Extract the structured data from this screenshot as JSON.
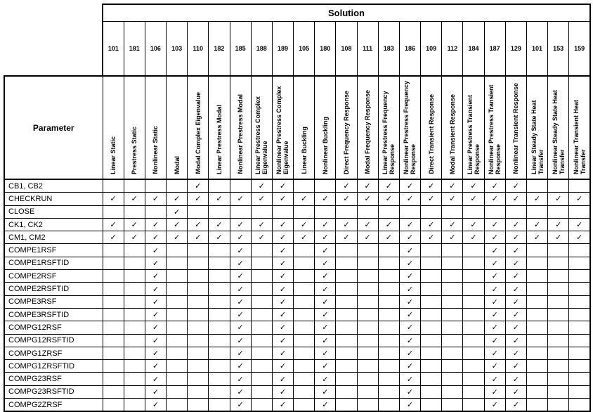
{
  "table": {
    "solution_header": "Solution",
    "parameter_header": "Parameter",
    "columns": [
      {
        "number": "101",
        "name": "Linear Static"
      },
      {
        "number": "181",
        "name": "Prestress Static"
      },
      {
        "number": "106",
        "name": "Nonlinear Static"
      },
      {
        "number": "103",
        "name": "Modal"
      },
      {
        "number": "110",
        "name": "Modal Complex Eigenvalue"
      },
      {
        "number": "182",
        "name": "Linear Prestress Modal"
      },
      {
        "number": "185",
        "name": "Nonlinear Prestress Modal"
      },
      {
        "number": "188",
        "name": "Linear Prestress Complex Eigenvalue"
      },
      {
        "number": "189",
        "name": "Nonlinear Prestress Complex Eigenvalue"
      },
      {
        "number": "105",
        "name": "Linear Buckling"
      },
      {
        "number": "180",
        "name": "Nonlinear Buckling"
      },
      {
        "number": "108",
        "name": "Direct Frequency Response"
      },
      {
        "number": "111",
        "name": "Modal Frequency Response"
      },
      {
        "number": "183",
        "name": "Linear Prestress Frequency Response"
      },
      {
        "number": "186",
        "name": "Nonlinear Prestress Frequency Response"
      },
      {
        "number": "109",
        "name": "Direct Transient Response"
      },
      {
        "number": "112",
        "name": "Modal Transient Response"
      },
      {
        "number": "184",
        "name": "Linear Prestress Transient Response"
      },
      {
        "number": "187",
        "name": "Nonlinear Prestress Transient Response"
      },
      {
        "number": "129",
        "name": "Nonlinear Transient Response"
      },
      {
        "number": "101",
        "name": "Linear Steady State Heat Transfer"
      },
      {
        "number": "153",
        "name": "Nonlinear Steady State Heat Transfer"
      },
      {
        "number": "159",
        "name": "Nonlinear Transient Heat Transfer"
      }
    ],
    "rows": [
      {
        "param": "CB1, CB2",
        "checks": [
          "",
          "",
          "",
          "",
          "✓",
          "",
          "",
          "✓",
          "✓",
          "",
          "",
          "✓",
          "✓",
          "✓",
          "✓",
          "✓",
          "✓",
          "✓",
          "✓",
          "✓",
          "",
          "",
          ""
        ]
      },
      {
        "param": "CHECKRUN",
        "checks": [
          "✓",
          "✓",
          "✓",
          "✓",
          "✓",
          "✓",
          "✓",
          "✓",
          "✓",
          "✓",
          "✓",
          "✓",
          "✓",
          "✓",
          "✓",
          "✓",
          "✓",
          "✓",
          "✓",
          "✓",
          "✓",
          "✓",
          "✓"
        ]
      },
      {
        "param": "CLOSE",
        "checks": [
          "",
          "",
          "",
          "✓",
          "",
          "",
          "",
          "",
          "",
          "",
          "",
          "",
          "",
          "",
          "",
          "",
          "",
          "",
          "",
          "",
          "",
          "",
          ""
        ]
      },
      {
        "param": "CK1, CK2",
        "checks": [
          "✓",
          "✓",
          "✓",
          "✓",
          "✓",
          "✓",
          "✓",
          "✓",
          "✓",
          "✓",
          "✓",
          "✓",
          "✓",
          "✓",
          "✓",
          "✓",
          "✓",
          "✓",
          "✓",
          "✓",
          "✓",
          "✓",
          "✓"
        ]
      },
      {
        "param": "CM1, CM2",
        "checks": [
          "✓",
          "✓",
          "✓",
          "✓",
          "✓",
          "✓",
          "✓",
          "✓",
          "✓",
          "✓",
          "✓",
          "✓",
          "✓",
          "✓",
          "✓",
          "✓",
          "✓",
          "✓",
          "✓",
          "✓",
          "✓",
          "✓",
          "✓"
        ]
      },
      {
        "param": "COMPE1RSF",
        "checks": [
          "",
          "",
          "✓",
          "",
          "",
          "",
          "✓",
          "",
          "✓",
          "",
          "✓",
          "",
          "",
          "",
          "✓",
          "",
          "",
          "",
          "✓",
          "✓",
          "",
          "",
          ""
        ]
      },
      {
        "param": "COMPE1RSFTID",
        "checks": [
          "",
          "",
          "✓",
          "",
          "",
          "",
          "✓",
          "",
          "✓",
          "",
          "✓",
          "",
          "",
          "",
          "✓",
          "",
          "",
          "",
          "✓",
          "✓",
          "",
          "",
          ""
        ]
      },
      {
        "param": "COMPE2RSF",
        "checks": [
          "",
          "",
          "✓",
          "",
          "",
          "",
          "✓",
          "",
          "✓",
          "",
          "✓",
          "",
          "",
          "",
          "✓",
          "",
          "",
          "",
          "✓",
          "✓",
          "",
          "",
          ""
        ]
      },
      {
        "param": "COMPE2RSFTID",
        "checks": [
          "",
          "",
          "✓",
          "",
          "",
          "",
          "✓",
          "",
          "✓",
          "",
          "✓",
          "",
          "",
          "",
          "✓",
          "",
          "",
          "",
          "✓",
          "✓",
          "",
          "",
          ""
        ]
      },
      {
        "param": "COMPE3RSF",
        "checks": [
          "",
          "",
          "✓",
          "",
          "",
          "",
          "✓",
          "",
          "✓",
          "",
          "✓",
          "",
          "",
          "",
          "✓",
          "",
          "",
          "",
          "✓",
          "✓",
          "",
          "",
          ""
        ]
      },
      {
        "param": "COMPE3RSFTID",
        "checks": [
          "",
          "",
          "✓",
          "",
          "",
          "",
          "✓",
          "",
          "✓",
          "",
          "✓",
          "",
          "",
          "",
          "✓",
          "",
          "",
          "",
          "✓",
          "✓",
          "",
          "",
          ""
        ]
      },
      {
        "param": "COMPG12RSF",
        "checks": [
          "",
          "",
          "✓",
          "",
          "",
          "",
          "✓",
          "",
          "✓",
          "",
          "✓",
          "",
          "",
          "",
          "✓",
          "",
          "",
          "",
          "✓",
          "✓",
          "",
          "",
          ""
        ]
      },
      {
        "param": "COMPG12RSFTID",
        "checks": [
          "",
          "",
          "✓",
          "",
          "",
          "",
          "✓",
          "",
          "✓",
          "",
          "✓",
          "",
          "",
          "",
          "✓",
          "",
          "",
          "",
          "✓",
          "✓",
          "",
          "",
          ""
        ]
      },
      {
        "param": "COMPG1ZRSF",
        "checks": [
          "",
          "",
          "✓",
          "",
          "",
          "",
          "✓",
          "",
          "✓",
          "",
          "✓",
          "",
          "",
          "",
          "✓",
          "",
          "",
          "",
          "✓",
          "✓",
          "",
          "",
          ""
        ]
      },
      {
        "param": "COMPG1ZRSFTID",
        "checks": [
          "",
          "",
          "✓",
          "",
          "",
          "",
          "✓",
          "",
          "✓",
          "",
          "✓",
          "",
          "",
          "",
          "✓",
          "",
          "",
          "",
          "✓",
          "✓",
          "",
          "",
          ""
        ]
      },
      {
        "param": "COMPG23RSF",
        "checks": [
          "",
          "",
          "✓",
          "",
          "",
          "",
          "✓",
          "",
          "✓",
          "",
          "✓",
          "",
          "",
          "",
          "✓",
          "",
          "",
          "",
          "✓",
          "✓",
          "",
          "",
          ""
        ]
      },
      {
        "param": "COMPG23RSFTID",
        "checks": [
          "",
          "",
          "✓",
          "",
          "",
          "",
          "✓",
          "",
          "✓",
          "",
          "✓",
          "",
          "",
          "",
          "✓",
          "",
          "",
          "",
          "✓",
          "✓",
          "",
          "",
          ""
        ]
      },
      {
        "param": "COMPG2ZRSF",
        "checks": [
          "",
          "",
          "✓",
          "",
          "",
          "",
          "✓",
          "",
          "✓",
          "",
          "✓",
          "",
          "",
          "",
          "✓",
          "",
          "",
          "",
          "✓",
          "✓",
          "",
          "",
          ""
        ]
      }
    ]
  }
}
